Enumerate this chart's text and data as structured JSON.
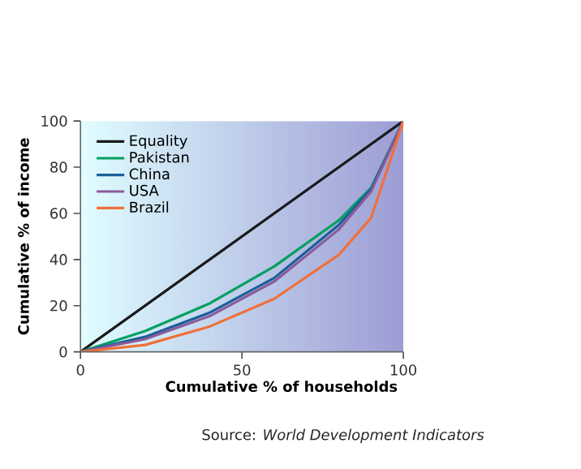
{
  "chart_data": {
    "type": "line",
    "xlabel": "Cumulative % of households",
    "ylabel": "Cumulative % of income",
    "annotations": [
      "Source: *World Development Indicators*"
    ],
    "x": [
      0,
      20,
      40,
      60,
      80,
      90,
      100
    ],
    "series": [
      {
        "name": "Equality",
        "color": "#1a1a1a",
        "x": [
          0,
          100
        ],
        "values": [
          0,
          100
        ]
      },
      {
        "name": "Pakistan",
        "color": "#00a060",
        "values": [
          0,
          9,
          21,
          37,
          57,
          71,
          100
        ]
      },
      {
        "name": "China",
        "color": "#1a5e9a",
        "values": [
          0,
          6.5,
          17,
          32,
          55,
          70.5,
          100
        ]
      },
      {
        "name": "USA",
        "color": "#8a5a9a",
        "values": [
          0,
          5.5,
          15.5,
          30.5,
          53,
          69.5,
          100
        ]
      },
      {
        "name": "Brazil",
        "color": "#f0703a",
        "values": [
          0,
          3,
          11,
          23,
          42,
          58,
          100
        ]
      }
    ],
    "xlim": [
      0,
      100
    ],
    "ylim": [
      0,
      100
    ],
    "xticks": [
      0,
      50,
      100
    ],
    "yticks": [
      0,
      20,
      40,
      60,
      80,
      100
    ],
    "legend": "top left",
    "grid": false,
    "marker": "none",
    "line_style": "solid"
  }
}
